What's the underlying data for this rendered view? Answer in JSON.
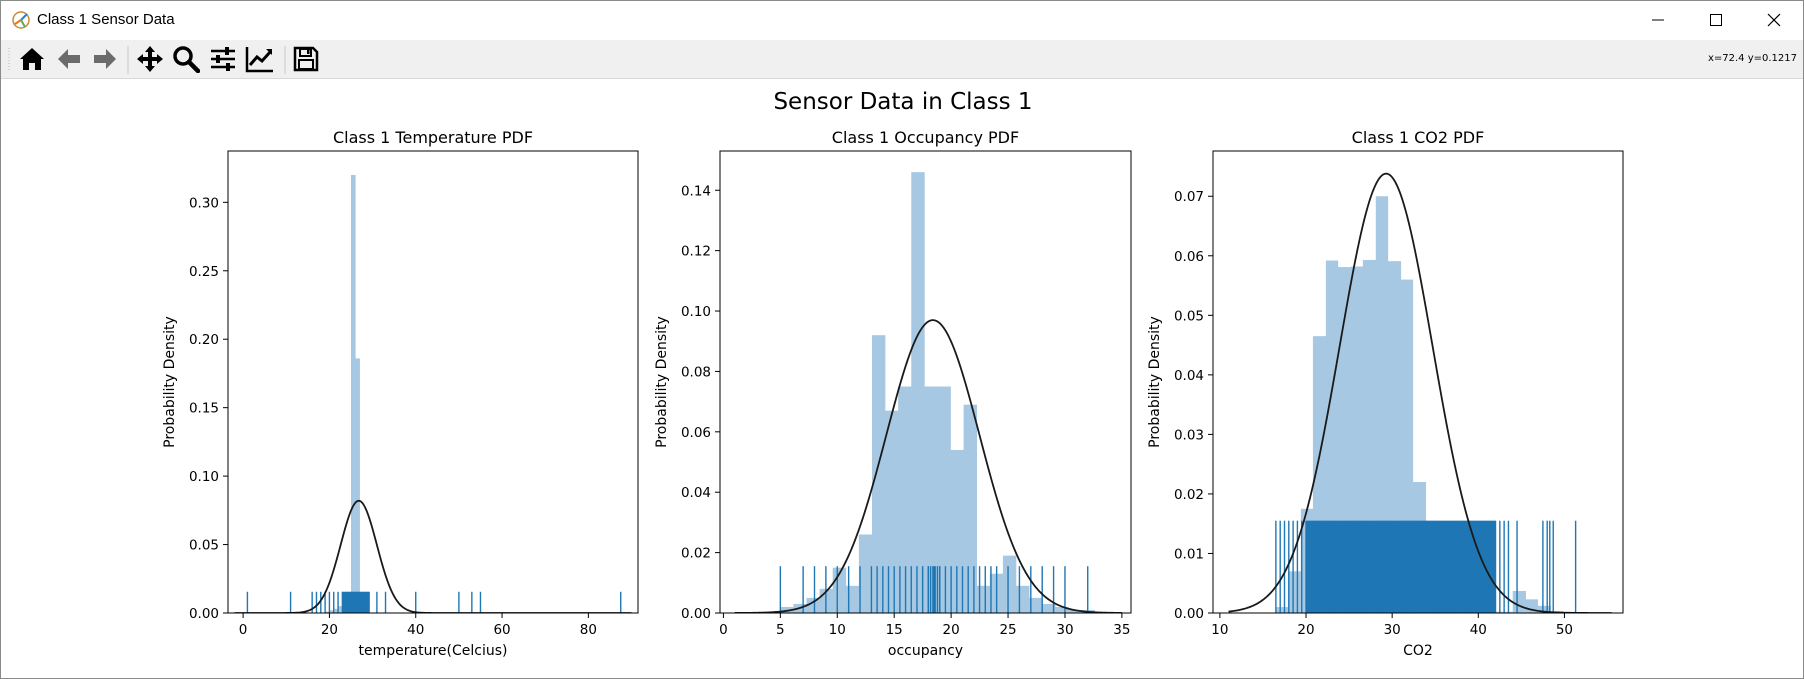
{
  "window": {
    "title": "Class 1 Sensor Data"
  },
  "toolbar": {
    "buttons": [
      "home-icon",
      "back-arrow-icon",
      "forward-arrow-icon",
      "pan-icon",
      "zoom-icon",
      "configure-subplots-icon",
      "edit-axis-icon",
      "save-icon"
    ],
    "coords": "x=72.4 y=0.1217"
  },
  "figure": {
    "suptitle": "Sensor Data in Class 1"
  },
  "colors": {
    "bar": "#a6c8e2",
    "rug": "#1f77b4",
    "curve": "#1a1a1a"
  },
  "chart_data": [
    {
      "type": "bar",
      "title": "Class 1 Temperature PDF",
      "xlabel": "temperature(Celcius)",
      "ylabel": "Probability Density",
      "xlim": [
        -3.5,
        91.5
      ],
      "ylim": [
        0,
        0.3375
      ],
      "xticks": [
        0,
        20,
        40,
        60,
        80
      ],
      "yticks": [
        0.0,
        0.05,
        0.1,
        0.15,
        0.2,
        0.25,
        0.3
      ],
      "ytick_decimals": 2,
      "histogram": {
        "edges": [
          19,
          20,
          21,
          22,
          23,
          24,
          25,
          26,
          27,
          28,
          29
        ],
        "values": [
          0.001,
          0.002,
          0.003,
          0.005,
          0.008,
          0.01,
          0.32,
          0.186,
          0.004,
          0.002
        ]
      },
      "curve": {
        "mean": 26.8,
        "std": 4.2,
        "peak": 0.082,
        "range": [
          -2,
          90
        ]
      },
      "rug": {
        "sparse": [
          1,
          11,
          16,
          17,
          18,
          19,
          20,
          21,
          22,
          23,
          31,
          33,
          40,
          50,
          53,
          55,
          87.5
        ],
        "dense_range": [
          23.2,
          29.2
        ],
        "dense_step": 0.2,
        "height": 0.0155
      }
    },
    {
      "type": "bar",
      "title": "Class 1 Occupancy PDF",
      "xlabel": "occupancy",
      "ylabel": "Probability Density",
      "xlim": [
        -0.3,
        35.8
      ],
      "ylim": [
        0,
        0.153
      ],
      "xticks": [
        0,
        5,
        10,
        15,
        20,
        25,
        30,
        35
      ],
      "yticks": [
        0.0,
        0.02,
        0.04,
        0.06,
        0.08,
        0.1,
        0.12,
        0.14
      ],
      "ytick_decimals": 2,
      "histogram": {
        "edges": [
          5,
          6.15,
          7.3,
          8.45,
          9.6,
          10.75,
          11.9,
          13.05,
          14.2,
          15.35,
          16.5,
          17.65,
          18.8,
          19.95,
          21.1,
          22.25,
          23.4,
          24.55,
          25.7,
          26.85,
          28,
          29.15,
          30.3,
          31.45,
          32.6
        ],
        "values": [
          0.002,
          0.003,
          0.005,
          0.008,
          0.015,
          0.009,
          0.026,
          0.092,
          0.067,
          0.075,
          0.146,
          0.075,
          0.075,
          0.054,
          0.069,
          0.009,
          0.013,
          0.019,
          0.009,
          0.005,
          0.003,
          0.002,
          0.001,
          0.001
        ]
      },
      "curve": {
        "mean": 18.4,
        "std": 4.1,
        "peak": 0.097,
        "range": [
          1,
          35
        ]
      },
      "rug": {
        "sparse": [
          5,
          7,
          8,
          9,
          10,
          11,
          12,
          13,
          13.5,
          14,
          14.5,
          15,
          15.5,
          16,
          16.5,
          17,
          17.5,
          18,
          18.5,
          19,
          19.5,
          20,
          20.5,
          21,
          21.5,
          22,
          22.5,
          23,
          23.5,
          24,
          25,
          26,
          27,
          28,
          29,
          30,
          32
        ],
        "dense_range": [
          18,
          19
        ],
        "dense_step": 0.2,
        "height": 0.0155
      }
    },
    {
      "type": "bar",
      "title": "Class 1 CO2 PDF",
      "xlabel": "CO2",
      "ylabel": "Probability Density",
      "xlim": [
        9.2,
        56.8
      ],
      "ylim": [
        0,
        0.0776
      ],
      "xticks": [
        10,
        20,
        30,
        40,
        50
      ],
      "yticks": [
        0.0,
        0.01,
        0.02,
        0.03,
        0.04,
        0.05,
        0.06,
        0.07
      ],
      "ytick_decimals": 2,
      "histogram": {
        "edges": [
          16.5,
          17.9,
          19.4,
          20.8,
          22.3,
          23.7,
          25.2,
          26.6,
          28.1,
          29.5,
          31,
          32.4,
          33.9,
          35.3,
          36.8,
          38.2,
          39.7,
          41.1,
          42.6,
          44,
          45.5,
          46.9,
          48.4,
          49.8,
          51.3
        ],
        "values": [
          0.001,
          0.007,
          0.0175,
          0.0465,
          0.0592,
          0.0581,
          0.0582,
          0.0593,
          0.07,
          0.0591,
          0.056,
          0.022,
          0.0116,
          0.0086,
          0.0011,
          0.0003,
          0.0002,
          0.0002,
          0.0002,
          0.0037,
          0.0023,
          0.0012,
          0.0003,
          0.0002
        ]
      },
      "curve": {
        "mean": 29.3,
        "std": 5.4,
        "peak": 0.0738,
        "range": [
          11,
          55.5
        ]
      },
      "rug": {
        "sparse": [
          16.5,
          17,
          17.5,
          18,
          18.5,
          19,
          19.5,
          42.5,
          43,
          43.5,
          44.5,
          47.5,
          48,
          48.3,
          48.7,
          51.3
        ],
        "dense_range": [
          20,
          42
        ],
        "dense_step": 0.1,
        "height": 0.0155
      }
    }
  ]
}
